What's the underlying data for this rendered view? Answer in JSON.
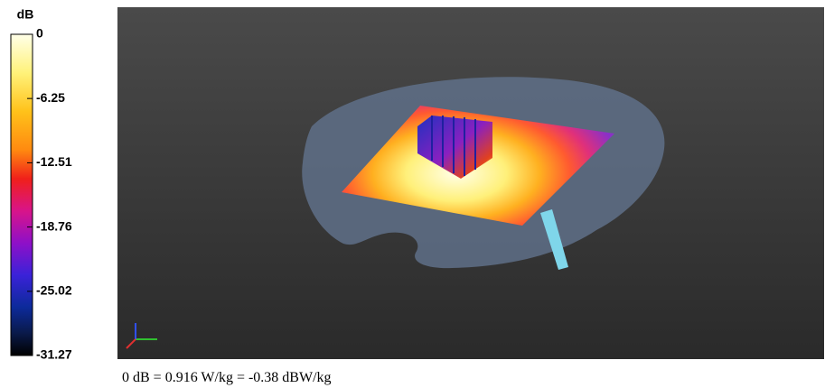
{
  "colorbar": {
    "unit": "dB",
    "lim": [
      0,
      -31.27
    ],
    "ticks": [
      0,
      -6.25,
      -12.51,
      -18.76,
      -25.02,
      -31.27
    ]
  },
  "caption": "0 dB = 0.916 W/kg = -0.38 dBW/kg"
}
